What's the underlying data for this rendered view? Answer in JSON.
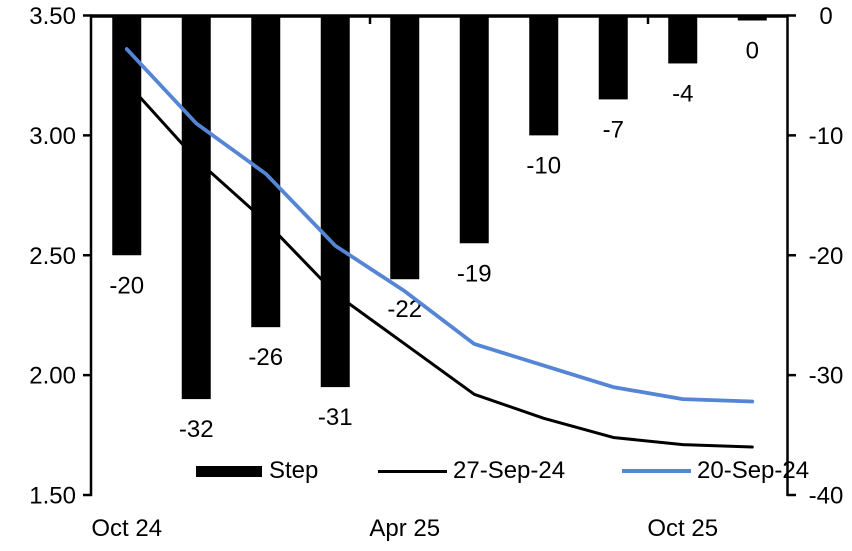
{
  "chart_data": {
    "type": "combo",
    "title": "",
    "categories_count": 10,
    "x_tick_labels": [
      {
        "index": 0,
        "label": "Oct 24"
      },
      {
        "index": 4,
        "label": "Apr 25"
      },
      {
        "index": 8,
        "label": "Oct 25"
      }
    ],
    "left_axis": {
      "min": 1.5,
      "max": 3.5,
      "tick_labels": [
        "3.50",
        "3.00",
        "2.50",
        "2.00",
        "1.50"
      ],
      "tick_values": [
        3.5,
        3.0,
        2.5,
        2.0,
        1.5
      ]
    },
    "right_axis": {
      "min": -40,
      "max": 0,
      "tick_labels": [
        "0",
        "-10",
        "-20",
        "-30",
        "-40"
      ],
      "tick_values": [
        0,
        -10,
        -20,
        -30,
        -40
      ]
    },
    "bar_series": {
      "name": "Step",
      "axis": "right",
      "color": "#000000",
      "values": [
        -20,
        -32,
        -26,
        -31,
        -22,
        -19,
        -10,
        -7,
        -4,
        0
      ],
      "data_labels": [
        "-20",
        "-32",
        "-26",
        "-31",
        "-22",
        "-19",
        "-10",
        "-7",
        "-4",
        "0"
      ]
    },
    "line_series": [
      {
        "name": "27-Sep-24",
        "axis": "left",
        "color": "#000000",
        "values": [
          3.22,
          2.9,
          2.64,
          2.34,
          2.13,
          1.92,
          1.82,
          1.74,
          1.71,
          1.7
        ]
      },
      {
        "name": "20-Sep-24",
        "axis": "left",
        "color": "#5585D5",
        "values": [
          3.36,
          3.05,
          2.84,
          2.54,
          2.35,
          2.13,
          2.04,
          1.95,
          1.9,
          1.89
        ]
      }
    ],
    "legend": {
      "position": "bottom",
      "items": [
        "Step",
        "27-Sep-24",
        "20-Sep-24"
      ]
    },
    "grid": "off"
  }
}
